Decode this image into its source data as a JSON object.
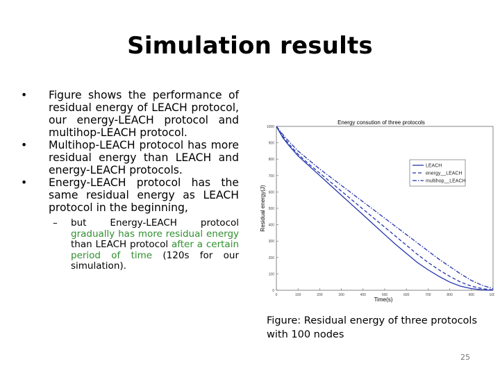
{
  "slide": {
    "title": "Simulation results",
    "page_number": "25"
  },
  "bullets": [
    {
      "marker": "•",
      "text": "Figure shows the performance of residual energy of LEACH protocol, our energy-LEACH protocol and multihop-LEACH protocol."
    },
    {
      "marker": "•",
      "text": "Multihop-LEACH protocol has more residual energy than LEACH and energy-LEACH protocols."
    },
    {
      "marker": "•",
      "text": "Energy-LEACH protocol has the same residual energy as LEACH protocol in the beginning,"
    }
  ],
  "sub_bullet": {
    "marker": "–",
    "part1": "but Energy-LEACH protocol ",
    "part2": "gradually has more residual energy",
    "part3": " than LEACH protocol ",
    "part4": "after a certain period of time",
    "part5": " (120s for our simulation)."
  },
  "caption": "Figure: Residual energy of three protocols with 100  nodes",
  "colors": {
    "accent_green": "#2f8f2f",
    "series_blue": "#2233aa"
  },
  "chart_data": {
    "type": "line",
    "title": "Energy consution of three protocols",
    "xlabel": "Time(s)",
    "ylabel": "Residual energy(J)",
    "xlim": [
      0,
      1000
    ],
    "ylim": [
      0,
      1000
    ],
    "xticks": [
      "0",
      "100",
      "200",
      "300",
      "400",
      "500",
      "600",
      "700",
      "800",
      "900",
      "1000"
    ],
    "yticks": [
      "0",
      "100",
      "200",
      "300",
      "400",
      "500",
      "600",
      "700",
      "800",
      "900",
      "1000"
    ],
    "legend_position": "right",
    "series": [
      {
        "name": "LEACH",
        "style": "solid",
        "x": [
          0,
          30,
          60,
          100,
          150,
          200,
          250,
          300,
          350,
          400,
          450,
          500,
          550,
          600,
          650,
          700,
          750,
          800,
          850,
          900,
          950,
          1000
        ],
        "y": [
          1000,
          930,
          880,
          820,
          760,
          700,
          640,
          580,
          520,
          460,
          400,
          340,
          280,
          225,
          170,
          125,
          85,
          50,
          25,
          10,
          3,
          0
        ]
      },
      {
        "name": "energy__LEACH",
        "style": "dashed",
        "x": [
          0,
          30,
          60,
          100,
          150,
          200,
          250,
          300,
          350,
          400,
          450,
          500,
          550,
          600,
          650,
          700,
          750,
          800,
          850,
          900,
          950,
          1000
        ],
        "y": [
          1000,
          940,
          890,
          830,
          770,
          715,
          660,
          605,
          550,
          495,
          440,
          385,
          330,
          275,
          220,
          170,
          125,
          85,
          50,
          25,
          10,
          2
        ]
      },
      {
        "name": "multihop__LEACH",
        "style": "dashdot",
        "x": [
          0,
          30,
          60,
          100,
          150,
          200,
          250,
          300,
          350,
          400,
          450,
          500,
          550,
          600,
          650,
          700,
          750,
          800,
          850,
          900,
          950,
          1000
        ],
        "y": [
          1000,
          950,
          905,
          850,
          795,
          740,
          690,
          640,
          590,
          540,
          490,
          440,
          390,
          340,
          290,
          240,
          190,
          145,
          100,
          60,
          30,
          10
        ]
      }
    ]
  }
}
